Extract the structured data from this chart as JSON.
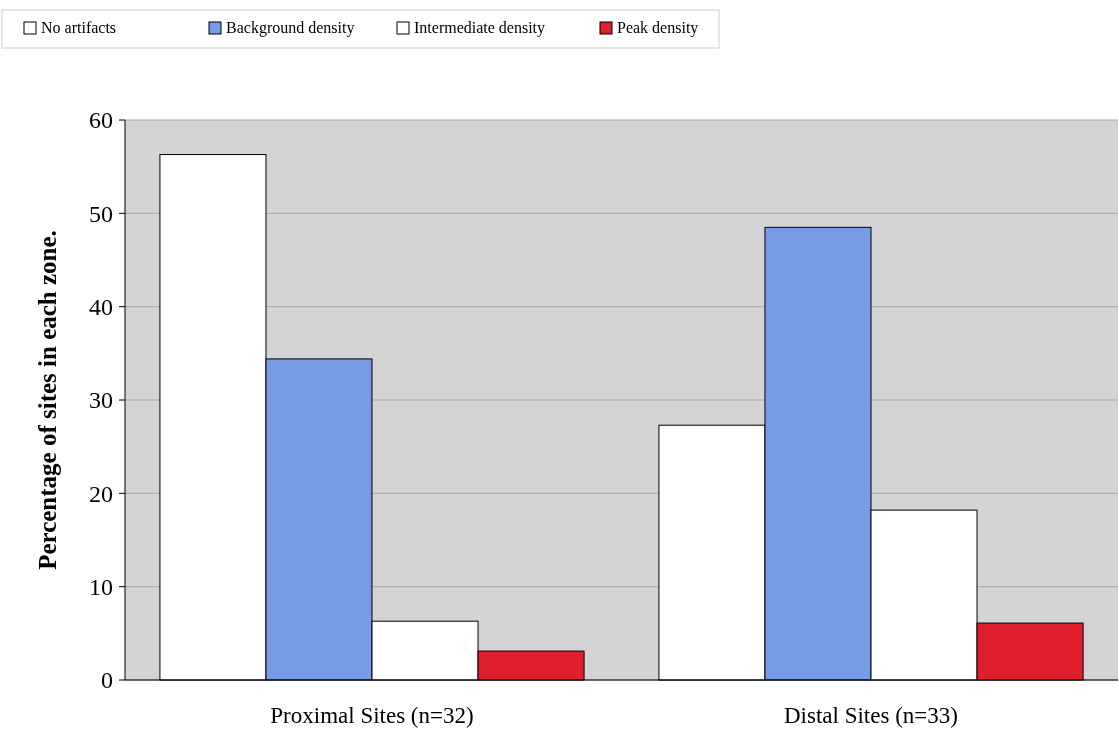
{
  "chart_data": {
    "type": "bar",
    "ylabel": "Percentage of sites in each zone.",
    "categories": [
      "Proximal Sites (n=32)",
      "Distal Sites (n=33)"
    ],
    "series": [
      {
        "name": "No artifacts",
        "color": "#ffffff",
        "values": [
          56.3,
          27.3
        ]
      },
      {
        "name": "Background density",
        "color": "#789be6",
        "values": [
          34.4,
          48.5
        ]
      },
      {
        "name": "Intermediate density",
        "color": "#ffffff",
        "values": [
          6.3,
          18.2
        ]
      },
      {
        "name": "Peak density",
        "color": "#e01f2d",
        "values": [
          3.1,
          6.1
        ]
      }
    ],
    "ylim": [
      0,
      60
    ],
    "yticks": [
      0,
      10,
      20,
      30,
      40,
      50,
      60
    ],
    "grid": "y",
    "legend": "top left"
  }
}
